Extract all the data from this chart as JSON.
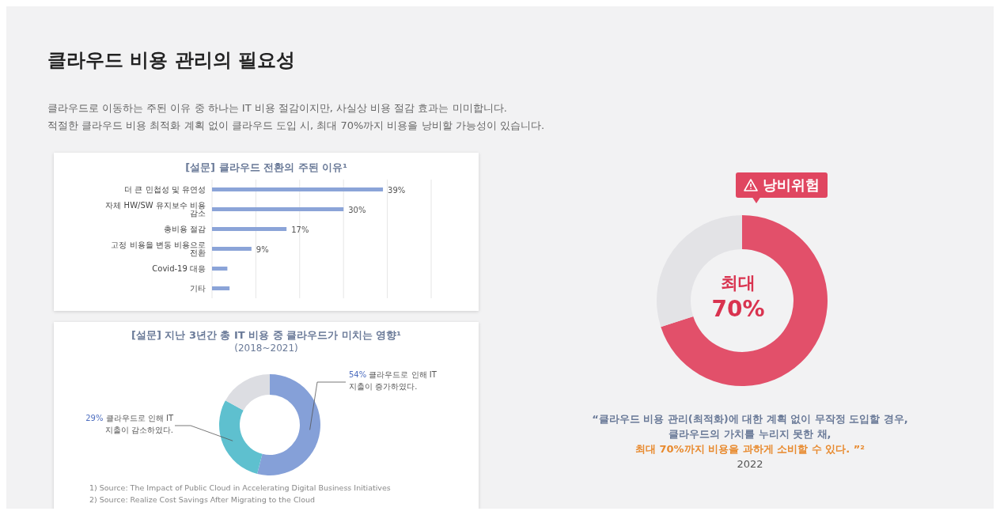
{
  "chart_data": [
    {
      "type": "other",
      "title": "클라우드 비용 관리의 필요성",
      "annotations": [
        "클라우드로 이동하는 주된 이유 중 하나는 IT 비용 절감이지만, 사실상 비용 절감 효과는 미미합니다.",
        "적절한 클라우드 비용 최적화 계획 없이 클라우드 도입 시, 최대 70%까지 비용을 낭비할 가능성이 있습니다."
      ]
    },
    {
      "type": "bar",
      "orientation": "horizontal",
      "title": "[설문] 클라우드 전환의 주된 이유¹",
      "categories": [
        "더 큰 민첩성 및 유연성",
        "자체 HW/SW  유지보수 비용 감소",
        "총비용 절감",
        "고정 비용을 변동 비용으로 전환",
        "Covid-19 대응",
        "기타"
      ],
      "values": [
        39,
        30,
        17,
        9,
        3.5,
        4
      ],
      "value_labels": [
        "39%",
        "30%",
        "17%",
        "9%",
        null,
        null
      ],
      "color": "#8ba4d8",
      "xlim": [
        0,
        50
      ],
      "xticks": [
        {
          "value": 0,
          "label": null
        },
        {
          "value": 10,
          "label": null
        },
        {
          "value": 20,
          "label": null
        },
        {
          "value": 30,
          "label": null
        },
        {
          "value": 40,
          "label": null
        },
        {
          "value": 50,
          "label": null
        }
      ],
      "grid": "x",
      "tick_labels": "y"
    },
    {
      "type": "donut",
      "title": "[설문] 지난 3년간 총 IT 비용 중 클라우드가 미치는 영향¹",
      "subtitle": "(2018~2021)",
      "categories": [
        "클라우드로 인해 IT 지출이 증가하였다.",
        "클라우드로 인해 IT 지출이 감소하였다.",
        null
      ],
      "values": [
        54,
        29,
        17
      ],
      "value_labels": [
        "54%",
        "29%",
        null
      ],
      "colors": [
        "#85a0d8",
        "#5ec0cf",
        "#dcdde2"
      ],
      "annotations": [
        "1) Source: The Impact of Public Cloud in Accelerating Digital Business Initiatives",
        "2) Source: Realize Cost Savings After Migrating to the Cloud"
      ]
    },
    {
      "type": "donut",
      "categories": [
        null,
        null
      ],
      "values": [
        70,
        30
      ],
      "colors": [
        "#e2506a",
        "#e3e3e6"
      ],
      "annotations": [
        "낭비위험",
        "최대 70%",
        "“클라우드 비용 관리(최적화)에 대한 계획 없이 무작정 도입할 경우,",
        "클라우드의 가치를 누리지 못한 채,",
        "최대 70%까지 비용을 과하게 소비할 수 있다. ”²",
        "2022"
      ]
    }
  ]
}
